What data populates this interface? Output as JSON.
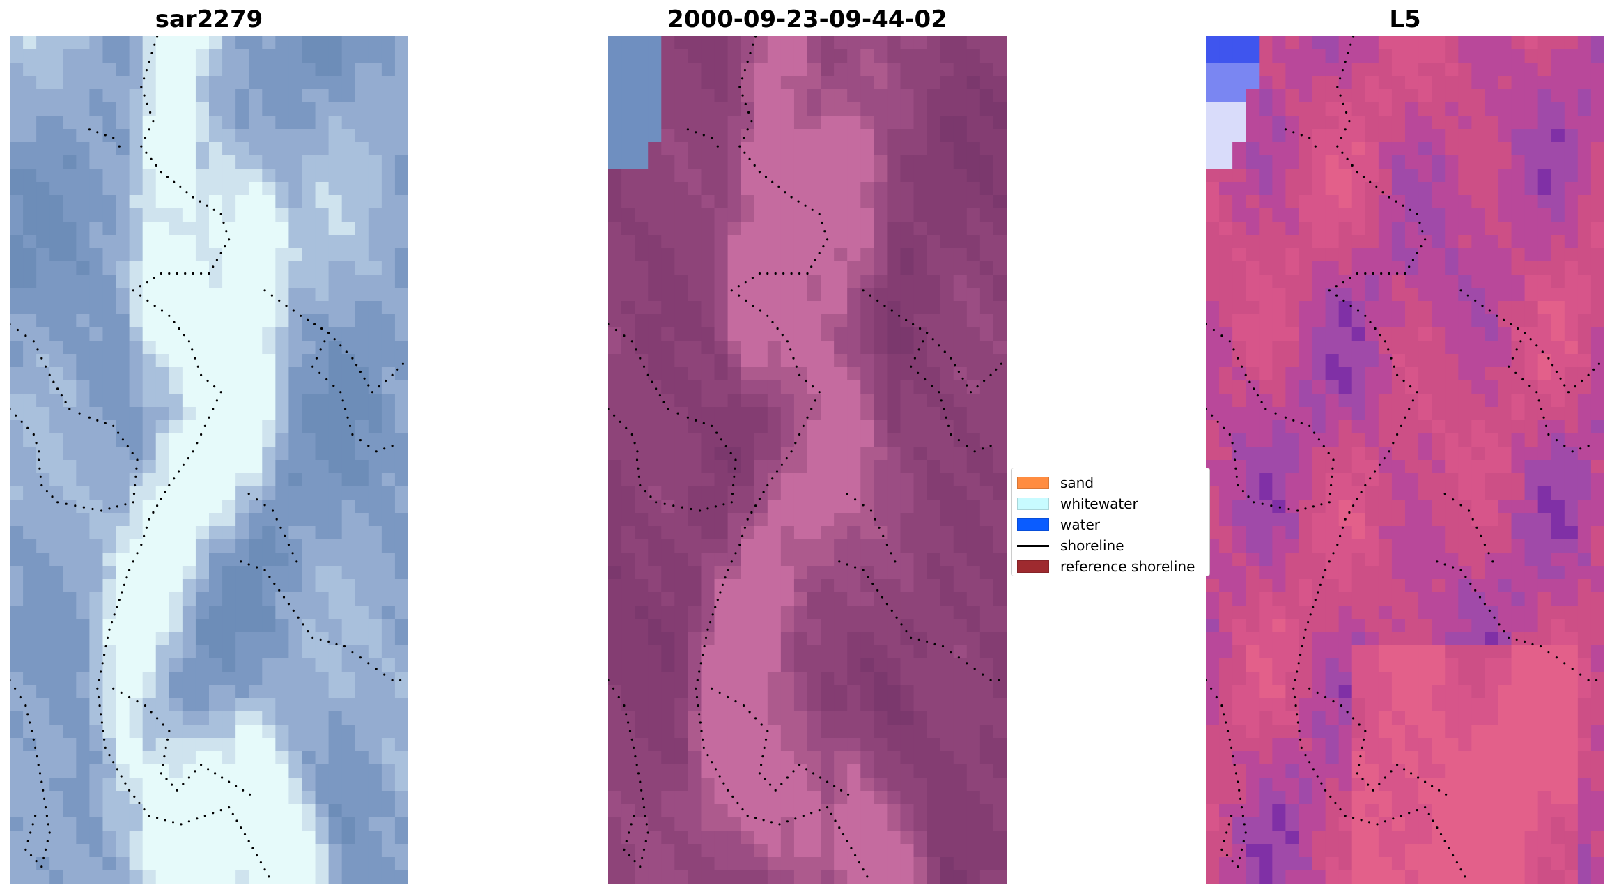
{
  "panels": [
    {
      "title": "sar2279",
      "variant": "rgb",
      "palette": [
        "#e6fafa",
        "#cfe3ee",
        "#a9c0dc",
        "#94acd0",
        "#7b98c2",
        "#6d8db8"
      ]
    },
    {
      "title": "2000-09-23-09-44-02",
      "variant": "class",
      "palette": [
        "#c56b9f",
        "#ad5a8d",
        "#9b4d83",
        "#8e4479",
        "#843d72",
        "#7b386d"
      ],
      "corner_color": "#6f8fc0"
    },
    {
      "title": "L5",
      "variant": "index",
      "palette": [
        "#e3608a",
        "#d7558a",
        "#cd4f86",
        "#b9489a",
        "#a04aa9",
        "#8030a6"
      ],
      "corner_color": "#4b62f0"
    }
  ],
  "legend": {
    "items": [
      {
        "label": "sand",
        "kind": "patch",
        "color": "#ff8c40"
      },
      {
        "label": "whitewater",
        "kind": "patch",
        "color": "#c8fbff"
      },
      {
        "label": "water",
        "kind": "patch",
        "color": "#0a5cff"
      },
      {
        "label": "shoreline",
        "kind": "line",
        "color": "#000000"
      },
      {
        "label": "reference shoreline",
        "kind": "patch",
        "color": "#9e2a2f"
      }
    ]
  }
}
